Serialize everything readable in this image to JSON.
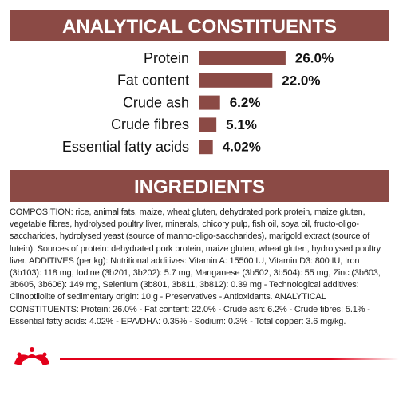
{
  "chart_data": {
    "type": "bar",
    "orientation": "horizontal",
    "title": "ANALYTICAL CONSTITUENTS",
    "categories": [
      "Protein",
      "Fat content",
      "Crude ash",
      "Crude fibres",
      "Essential fatty acids"
    ],
    "values": [
      26.0,
      22.0,
      6.2,
      5.1,
      4.02
    ],
    "value_labels": [
      "26.0%",
      "22.0%",
      "6.2%",
      "5.1%",
      "4.02%"
    ],
    "color": "#8b4a45"
  },
  "ingredients": {
    "title": "INGREDIENTS",
    "text": "COMPOSITION: rice, animal fats, maize, wheat gluten, dehydrated pork protein, maize gluten, vegetable fibres, hydrolysed poultry liver, minerals, chicory pulp, fish oil, soya oil, fructo-oligo-saccharides, hydrolysed yeast (source of manno-oligo-saccharides), marigold extract (source of lutein). Sources of protein: dehydrated pork protein, maize gluten, wheat gluten, hydrolysed poultry liver. ADDITIVES (per kg): Nutritional additives: Vitamin A: 15500 IU, Vitamin D3: 800 IU, Iron (3b103): 118 mg, Iodine (3b201, 3b202): 5.7 mg, Manganese (3b502, 3b504): 55 mg, Zinc (3b603, 3b605, 3b606): 149 mg, Selenium (3b801, 3b811, 3b812): 0.39 mg - Technological additives: Clinoptilolite of sedimentary origin: 10 g - Preservatives - Antioxidants. ANALYTICAL CONSTITUENTS: Protein: 26.0% - Fat content: 22.0% - Crude ash: 6.2% - Crude fibres: 5.1% - Essential fatty acids: 4.02% - EPA/DHA: 0.35% - Sodium: 0.3% - Total copper: 3.6 mg/kg."
  }
}
